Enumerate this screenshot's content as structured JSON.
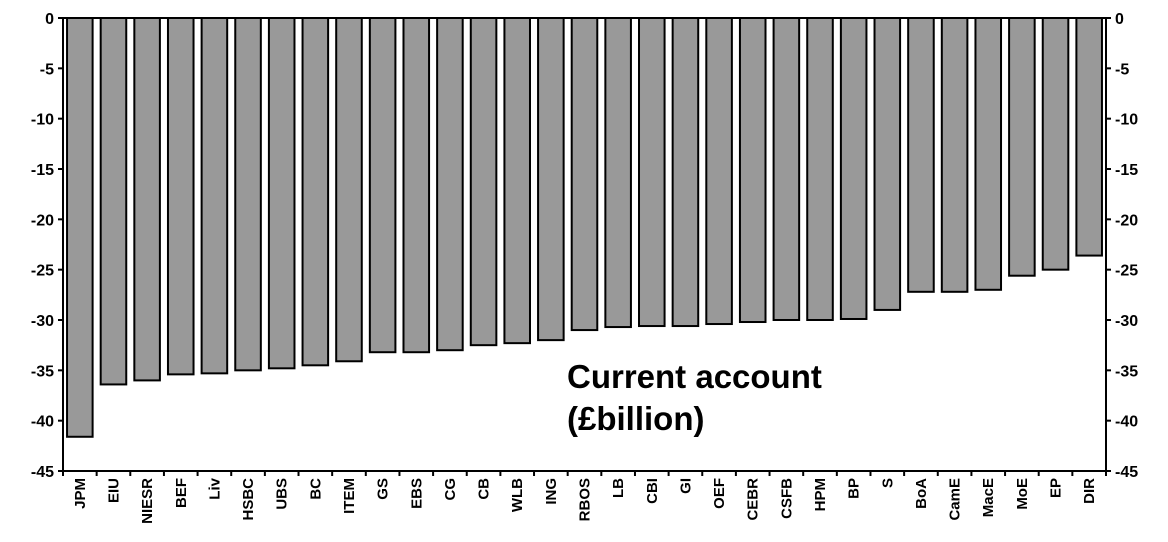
{
  "chart_data": {
    "type": "bar",
    "title_lines": [
      "Current account",
      "(£billion)"
    ],
    "categories": [
      "JPM",
      "EIU",
      "NIESR",
      "BEF",
      "Liv",
      "HSBC",
      "UBS",
      "BC",
      "ITEM",
      "GS",
      "EBS",
      "CG",
      "CB",
      "WLB",
      "ING",
      "RBOS",
      "LB",
      "CBI",
      "GI",
      "OEF",
      "CEBR",
      "CSFB",
      "HPM",
      "BP",
      "S",
      "BoA",
      "CamE",
      "MacE",
      "MoE",
      "EP",
      "DIR"
    ],
    "values": [
      -41.6,
      -36.4,
      -36.0,
      -35.4,
      -35.3,
      -35.0,
      -34.8,
      -34.5,
      -34.1,
      -33.2,
      -33.2,
      -33.0,
      -32.5,
      -32.3,
      -32.0,
      -31.0,
      -30.7,
      -30.6,
      -30.6,
      -30.4,
      -30.2,
      -30.0,
      -30.0,
      -29.9,
      -29.0,
      -27.2,
      -27.2,
      -27.0,
      -25.6,
      -25.0,
      -23.6
    ],
    "ylim": [
      -45,
      0
    ],
    "yticks": [
      "0",
      "-5",
      "-10",
      "-15",
      "-20",
      "-25",
      "-30",
      "-35",
      "-40",
      "-45"
    ],
    "bar_color": "#999999",
    "grid": false,
    "legend": "none"
  }
}
